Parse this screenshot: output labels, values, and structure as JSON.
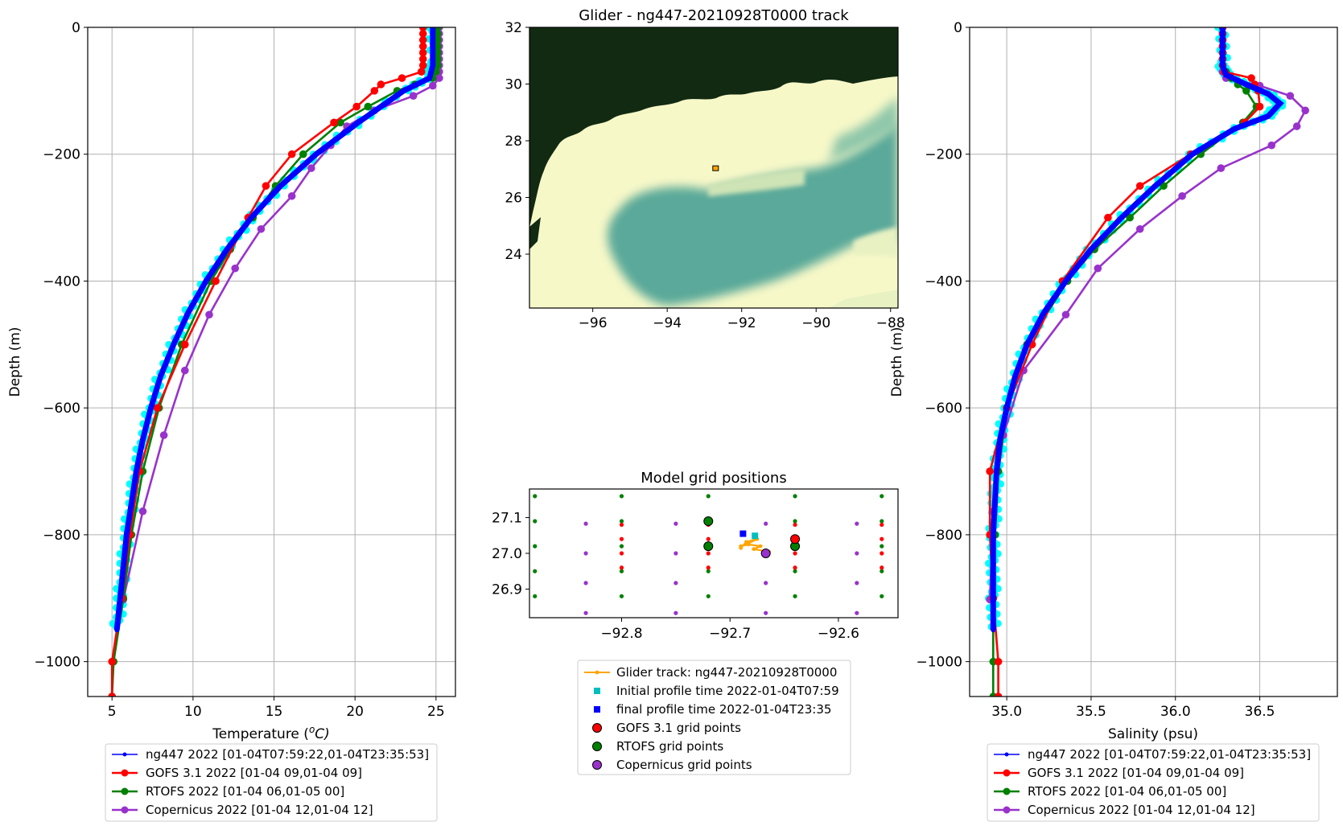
{
  "colors": {
    "glider": "#0000ff",
    "glider_raw": "#00ffff",
    "gofs": "#ff0000",
    "rtofs": "#008000",
    "copernicus": "#9932cc",
    "track": "#ffa500",
    "initial_marker": "#00bfbf",
    "final_marker": "#0000ff",
    "land": "#122a12",
    "shelf": "#f7f8c8",
    "deep": "#5aa99a"
  },
  "chart_data": [
    {
      "id": "temperature",
      "type": "line",
      "xlabel": "Temperature ($^oC$)",
      "xlabel_main": "Temperature (",
      "xlabel_sup": "o",
      "xlabel_tail": "C)",
      "ylabel": "Depth (m)",
      "xlim": [
        3.5,
        26.2
      ],
      "ylim": [
        -1055,
        0
      ],
      "xticks": [
        5,
        10,
        15,
        20,
        25
      ],
      "yticks": [
        0,
        -200,
        -400,
        -600,
        -800,
        -1000
      ],
      "grid": true,
      "legend_position": "below",
      "series": [
        {
          "name": "ng447 2022 [01-04T07:59:22,01-04T23:35:53]",
          "key": "glider",
          "depth": [
            0,
            -60,
            -80,
            -100,
            -150,
            -200,
            -250,
            -300,
            -350,
            -400,
            -450,
            -500,
            -550,
            -600,
            -650,
            -700,
            -750,
            -800,
            -850,
            -900,
            -950
          ],
          "values": [
            24.8,
            24.8,
            24.6,
            23.0,
            20.2,
            17.6,
            15.4,
            13.6,
            12.1,
            10.8,
            9.7,
            8.8,
            8.0,
            7.4,
            6.9,
            6.5,
            6.2,
            5.9,
            5.7,
            5.5,
            5.3
          ]
        },
        {
          "name": "GOFS 3.1 2022 [01-04 09,01-04 09]",
          "key": "gofs",
          "depth": [
            0,
            -10,
            -20,
            -30,
            -40,
            -50,
            -60,
            -70,
            -80,
            -90,
            -100,
            -125,
            -150,
            -200,
            -250,
            -300,
            -400,
            -500,
            -600,
            -700,
            -800,
            -900,
            -1000,
            -1055
          ],
          "values": [
            24.2,
            24.2,
            24.2,
            24.2,
            24.2,
            24.2,
            24.2,
            24.1,
            22.9,
            21.6,
            21.2,
            20.1,
            18.7,
            16.1,
            14.5,
            13.4,
            11.4,
            9.5,
            7.8,
            6.7,
            6.1,
            5.6,
            5.0,
            5.0
          ]
        },
        {
          "name": "RTOFS 2022 [01-04 06,01-05 00]",
          "key": "rtofs",
          "depth": [
            0,
            -10,
            -20,
            -30,
            -40,
            -50,
            -60,
            -70,
            -80,
            -90,
            -100,
            -125,
            -150,
            -200,
            -250,
            -300,
            -350,
            -400,
            -500,
            -600,
            -700,
            -800,
            -900,
            -1000,
            -1055
          ],
          "values": [
            25.1,
            25.1,
            25.1,
            25.1,
            25.1,
            25.1,
            25.1,
            25.0,
            24.8,
            23.7,
            22.6,
            20.8,
            19.1,
            16.8,
            15.1,
            13.7,
            12.3,
            11.1,
            9.3,
            7.9,
            6.9,
            6.2,
            5.7,
            5.1,
            5.0
          ]
        },
        {
          "name": "Copernicus 2022 [01-04 12,01-04 12]",
          "key": "copernicus",
          "depth": [
            0,
            -10,
            -20,
            -30,
            -40,
            -50,
            -60,
            -70,
            -80,
            -92,
            -108,
            -131,
            -156,
            -186,
            -222,
            -266,
            -318,
            -380,
            -453,
            -541,
            -643,
            -763,
            -902
          ],
          "values": [
            25.2,
            25.2,
            25.2,
            25.2,
            25.2,
            25.2,
            25.2,
            25.2,
            25.2,
            24.8,
            23.6,
            21.2,
            19.5,
            18.5,
            17.3,
            16.1,
            14.2,
            12.6,
            11.0,
            9.5,
            8.2,
            6.9,
            5.7
          ]
        }
      ]
    },
    {
      "id": "salinity",
      "type": "line",
      "xlabel": "Salinity (psu)",
      "ylabel": "Depth (m)",
      "xlim": [
        34.78,
        36.96
      ],
      "ylim": [
        -1055,
        0
      ],
      "xticks": [
        35.0,
        35.5,
        36.0,
        36.5
      ],
      "xtick_labels": [
        "35.0",
        "35.5",
        "36.0",
        "36.5"
      ],
      "yticks": [
        0,
        -200,
        -400,
        -600,
        -800,
        -1000
      ],
      "grid": true,
      "legend_position": "below",
      "series": [
        {
          "name": "ng447 2022 [01-04T07:59:22,01-04T23:35:53]",
          "key": "glider",
          "depth": [
            0,
            -60,
            -75,
            -90,
            -105,
            -120,
            -140,
            -160,
            -200,
            -250,
            -300,
            -350,
            -400,
            -450,
            -500,
            -550,
            -600,
            -650,
            -700,
            -750,
            -800,
            -850,
            -900,
            -950
          ],
          "values": [
            36.28,
            36.28,
            36.3,
            36.42,
            36.55,
            36.62,
            36.55,
            36.35,
            36.1,
            35.88,
            35.68,
            35.5,
            35.35,
            35.22,
            35.12,
            35.05,
            35.0,
            34.96,
            34.94,
            34.93,
            34.92,
            34.92,
            34.92,
            34.92
          ]
        },
        {
          "name": "GOFS 3.1 2022 [01-04 09,01-04 09]",
          "key": "gofs",
          "depth": [
            0,
            -10,
            -20,
            -30,
            -40,
            -50,
            -60,
            -70,
            -80,
            -90,
            -100,
            -125,
            -150,
            -200,
            -250,
            -300,
            -400,
            -500,
            -600,
            -700,
            -800,
            -900,
            -1000,
            -1055
          ],
          "values": [
            36.28,
            36.28,
            36.28,
            36.28,
            36.28,
            36.28,
            36.28,
            36.29,
            36.45,
            36.47,
            36.49,
            36.5,
            36.41,
            36.09,
            35.79,
            35.6,
            35.33,
            35.15,
            35.0,
            34.9,
            34.9,
            34.92,
            34.95,
            34.95
          ]
        },
        {
          "name": "RTOFS 2022 [01-04 06,01-05 00]",
          "key": "rtofs",
          "depth": [
            0,
            -10,
            -20,
            -30,
            -40,
            -50,
            -60,
            -70,
            -80,
            -90,
            -100,
            -125,
            -150,
            -200,
            -250,
            -300,
            -350,
            -400,
            -500,
            -600,
            -700,
            -800,
            -900,
            -1000,
            -1055
          ],
          "values": [
            36.28,
            36.28,
            36.28,
            36.28,
            36.28,
            36.28,
            36.28,
            36.3,
            36.33,
            36.37,
            36.42,
            36.48,
            36.4,
            36.15,
            35.93,
            35.73,
            35.52,
            35.36,
            35.12,
            35.0,
            34.95,
            34.93,
            34.92,
            34.92,
            34.92
          ]
        },
        {
          "name": "Copernicus 2022 [01-04 12,01-04 12]",
          "key": "copernicus",
          "depth": [
            0,
            -10,
            -20,
            -30,
            -40,
            -50,
            -60,
            -70,
            -80,
            -92,
            -108,
            -131,
            -156,
            -186,
            -222,
            -266,
            -318,
            -380,
            -453,
            -541,
            -643,
            -763,
            -902
          ],
          "values": [
            36.28,
            36.28,
            36.28,
            36.28,
            36.28,
            36.28,
            36.28,
            36.28,
            36.3,
            36.5,
            36.68,
            36.77,
            36.72,
            36.57,
            36.27,
            36.04,
            35.79,
            35.54,
            35.35,
            35.1,
            34.98,
            34.92,
            34.9
          ]
        }
      ]
    },
    {
      "id": "track_map",
      "type": "map",
      "title": "Glider - ng447-20210928T0000 track",
      "xlim": [
        -97.7,
        -87.8
      ],
      "ylim": [
        22.1,
        32.0
      ],
      "xticks": [
        -96,
        -94,
        -92,
        -90,
        -88
      ],
      "yticks": [
        24,
        26,
        28,
        30,
        32
      ],
      "glider_position": {
        "lon": -92.7,
        "lat": 27.03
      }
    },
    {
      "id": "model_grid",
      "type": "scatter",
      "title": "Model grid positions",
      "xlim": [
        -92.885,
        -92.545
      ],
      "ylim": [
        26.82,
        27.18
      ],
      "xticks": [
        -92.8,
        -92.7,
        -92.6
      ],
      "xtick_labels": [
        "−92.8",
        "−92.7",
        "−92.6"
      ],
      "yticks": [
        26.9,
        27.0,
        27.1
      ],
      "ytick_labels": [
        "26.9",
        "27.0",
        "27.1"
      ],
      "gofs_grid": {
        "lons": [
          -92.8,
          -92.72,
          -92.64,
          -92.56
        ],
        "lats": [
          26.96,
          27.0,
          27.04,
          27.08
        ]
      },
      "rtofs_grid": {
        "lons": [
          -92.88,
          -92.8,
          -92.72,
          -92.64,
          -92.56
        ],
        "lats": [
          26.88,
          26.95,
          27.02,
          27.09,
          27.16
        ]
      },
      "copernicus_grid": {
        "lons": [
          -92.833,
          -92.75,
          -92.667,
          -92.583
        ],
        "lats": [
          26.833,
          26.917,
          27.0,
          27.083
        ]
      },
      "selected": {
        "gofs": [
          {
            "lon": -92.64,
            "lat": 27.04
          }
        ],
        "rtofs": [
          {
            "lon": -92.72,
            "lat": 27.09
          },
          {
            "lon": -92.72,
            "lat": 27.02
          },
          {
            "lon": -92.64,
            "lat": 27.02
          }
        ],
        "copernicus": [
          {
            "lon": -92.667,
            "lat": 27.0
          }
        ]
      },
      "track": {
        "lons": [
          -92.69,
          -92.685,
          -92.675,
          -92.683,
          -92.69,
          -92.683,
          -92.672,
          -92.678,
          -92.664
        ],
        "lats": [
          27.015,
          27.032,
          27.04,
          27.028,
          27.02,
          27.025,
          27.02,
          27.012,
          27.004
        ]
      },
      "initial_profile": {
        "lon": -92.677,
        "lat": 27.049
      },
      "final_profile": {
        "lon": -92.688,
        "lat": 27.055
      }
    }
  ],
  "legend_profiles": [
    {
      "key": "glider",
      "label": "ng447 2022 [01-04T07:59:22,01-04T23:35:53]"
    },
    {
      "key": "gofs",
      "label": "GOFS 3.1 2022 [01-04 09,01-04 09]"
    },
    {
      "key": "rtofs",
      "label": "RTOFS 2022 [01-04 06,01-05 00]"
    },
    {
      "key": "copernicus",
      "label": "Copernicus 2022 [01-04 12,01-04 12]"
    }
  ],
  "legend_map": [
    {
      "key": "track",
      "label": "Glider track: ng447-20210928T0000"
    },
    {
      "key": "initial_marker",
      "label": "Initial profile time 2022-01-04T07:59"
    },
    {
      "key": "final_marker",
      "label": "final profile time 2022-01-04T23:35"
    },
    {
      "key": "gofs",
      "label": "GOFS 3.1 grid points"
    },
    {
      "key": "rtofs",
      "label": "RTOFS grid points"
    },
    {
      "key": "copernicus",
      "label": "Copernicus grid points"
    }
  ]
}
